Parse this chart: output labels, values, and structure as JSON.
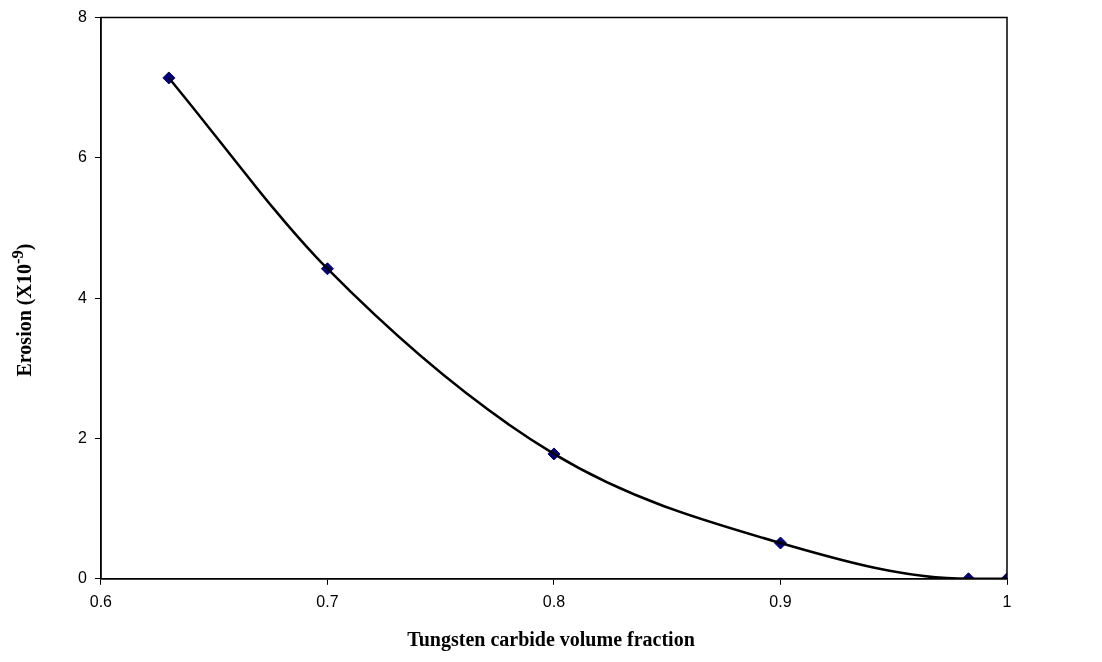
{
  "chart_data": {
    "type": "line",
    "xlabel": "Tungsten carbide volume fraction",
    "ylabel": "Erosion (X10$^{-9}$)",
    "x": [
      0.63,
      0.7,
      0.8,
      0.9,
      0.983,
      1.0
    ],
    "series": [
      {
        "marker": "none",
        "color": "#000000",
        "values": [
          7.14,
          4.42,
          1.78,
          0.51,
          0,
          0
        ]
      },
      {
        "type": "scatter",
        "color": "#000080",
        "values": [
          7.14,
          4.42,
          1.78,
          0.51,
          0,
          0
        ]
      }
    ],
    "xlim": [
      0.6,
      1
    ],
    "xticks": [
      0.6,
      0.7,
      0.8,
      0.9,
      1
    ],
    "ylim": [
      0,
      8
    ],
    "yticks": [
      0,
      2,
      4,
      6,
      8
    ],
    "grid": false,
    "legend": false,
    "marker": "diamond"
  }
}
